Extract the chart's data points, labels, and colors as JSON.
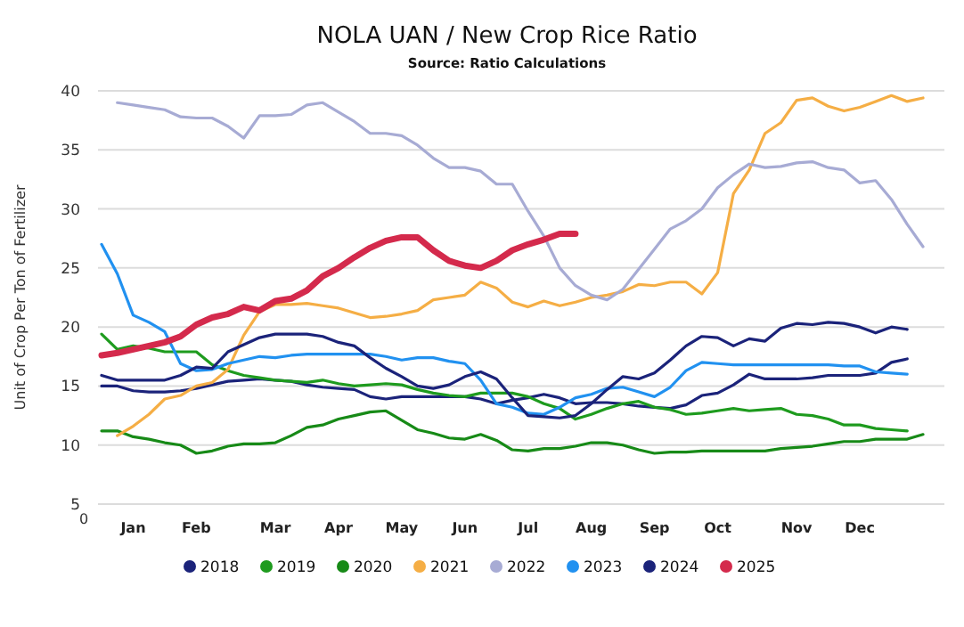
{
  "chart_data": {
    "type": "line",
    "title": "NOLA UAN / New Crop Rice Ratio",
    "subtitle": "Source: Ratio Calculations",
    "ylabel": "Unit of Crop Per Ton of Fertilizer",
    "categories": [
      null,
      null,
      "Jan",
      null,
      null,
      null,
      "Feb",
      null,
      null,
      null,
      null,
      "Mar",
      null,
      null,
      null,
      "Apr",
      null,
      null,
      null,
      "May",
      null,
      null,
      null,
      "Jun",
      null,
      null,
      null,
      "Jul",
      null,
      null,
      null,
      "Aug",
      null,
      null,
      null,
      "Sep",
      null,
      null,
      null,
      "Oct",
      null,
      null,
      null,
      null,
      "Nov",
      null,
      null,
      null,
      "Dec",
      null,
      null,
      null,
      null
    ],
    "ylim": [
      5,
      40
    ],
    "yticks": [
      5,
      10,
      15,
      20,
      25,
      30,
      35,
      40
    ],
    "grid": "y",
    "legend": "bottom",
    "marker": "none",
    "annotations": [
      "0"
    ],
    "series": [
      {
        "name": "2018",
        "color": "#1b237a",
        "values": [
          15,
          15,
          14.6,
          14.5,
          14.5,
          14.6,
          14.8,
          15.1,
          15.4,
          15.5,
          15.6,
          15.5,
          15.4,
          15.1,
          14.9,
          14.8,
          14.7,
          14.1,
          13.9,
          14.1,
          14.1,
          14.1,
          14.1,
          14.1,
          13.9,
          13.5,
          13.8,
          14.0,
          14.3,
          14.0,
          13.5,
          13.6,
          13.6,
          13.5,
          13.3,
          13.2,
          13.1,
          13.4,
          14.2,
          14.4,
          15.1,
          16.0,
          15.6,
          15.6,
          15.6,
          15.7,
          15.9,
          15.9,
          15.9,
          16.1,
          17.0,
          17.3,
          null
        ]
      },
      {
        "name": "2019",
        "color": "#1e9b1e",
        "values": [
          19.4,
          18.1,
          18.4,
          18.2,
          17.9,
          17.9,
          17.9,
          16.8,
          16.3,
          15.9,
          15.7,
          15.5,
          15.4,
          15.3,
          15.5,
          15.2,
          15.0,
          15.1,
          15.2,
          15.1,
          14.7,
          14.4,
          14.2,
          14.1,
          14.4,
          14.4,
          14.4,
          14.1,
          13.5,
          13.1,
          12.2,
          12.6,
          13.1,
          13.5,
          13.7,
          13.2,
          13.0,
          12.6,
          12.7,
          12.9,
          13.1,
          12.9,
          13.0,
          13.1,
          12.6,
          12.5,
          12.2,
          11.7,
          11.7,
          11.4,
          11.3,
          11.2,
          null
        ]
      },
      {
        "name": "2020",
        "color": "#178a17",
        "values": [
          11.2,
          11.2,
          10.7,
          10.5,
          10.2,
          10.0,
          9.3,
          9.5,
          9.9,
          10.1,
          10.1,
          10.2,
          10.8,
          11.5,
          11.7,
          12.2,
          12.5,
          12.8,
          12.9,
          12.1,
          11.3,
          11.0,
          10.6,
          10.5,
          10.9,
          10.4,
          9.6,
          9.5,
          9.7,
          9.7,
          9.9,
          10.2,
          10.2,
          10.0,
          9.6,
          9.3,
          9.4,
          9.4,
          9.5,
          9.5,
          9.5,
          9.5,
          9.5,
          9.7,
          9.8,
          9.9,
          10.1,
          10.3,
          10.3,
          10.5,
          10.5,
          10.5,
          10.9
        ]
      },
      {
        "name": "2021",
        "color": "#f5ae45",
        "values": [
          null,
          10.8,
          11.6,
          12.6,
          13.9,
          14.2,
          15.0,
          15.3,
          16.4,
          19.3,
          21.3,
          21.9,
          21.9,
          22.0,
          21.8,
          21.6,
          21.2,
          20.8,
          20.9,
          21.1,
          21.4,
          22.3,
          22.5,
          22.7,
          23.8,
          23.3,
          22.1,
          21.7,
          22.2,
          21.8,
          22.1,
          22.5,
          22.7,
          23.0,
          23.6,
          23.5,
          23.8,
          23.8,
          22.8,
          24.6,
          31.3,
          33.3,
          36.4,
          37.3,
          39.2,
          39.4,
          38.7,
          38.3,
          38.6,
          39.1,
          39.6,
          39.1,
          39.4
        ]
      },
      {
        "name": "2022",
        "color": "#a7abd4",
        "values": [
          null,
          39.0,
          38.8,
          38.6,
          38.4,
          37.8,
          37.7,
          37.7,
          37.0,
          36.0,
          37.9,
          37.9,
          38.0,
          38.8,
          39.0,
          38.2,
          37.4,
          36.4,
          36.4,
          36.2,
          35.4,
          34.3,
          33.5,
          33.5,
          33.2,
          32.1,
          32.1,
          29.8,
          27.7,
          25.0,
          23.5,
          22.7,
          22.3,
          23.2,
          24.9,
          26.6,
          28.3,
          29.0,
          30.0,
          31.8,
          32.9,
          33.8,
          33.5,
          33.6,
          33.9,
          34.0,
          33.5,
          33.3,
          32.2,
          32.4,
          30.8,
          28.7,
          26.8
        ]
      },
      {
        "name": "2023",
        "color": "#2191f0",
        "values": [
          27,
          24.5,
          21.0,
          20.4,
          19.6,
          16.9,
          16.3,
          16.4,
          16.9,
          17.2,
          17.5,
          17.4,
          17.6,
          17.7,
          17.7,
          17.7,
          17.7,
          17.7,
          17.5,
          17.2,
          17.4,
          17.4,
          17.1,
          16.9,
          15.5,
          13.5,
          13.2,
          12.7,
          12.6,
          13.2,
          14.0,
          14.3,
          14.8,
          14.9,
          14.5,
          14.1,
          14.9,
          16.3,
          17.0,
          16.9,
          16.8,
          16.8,
          16.8,
          16.8,
          16.8,
          16.8,
          16.8,
          16.7,
          16.7,
          16.2,
          16.1,
          16.0,
          null
        ]
      },
      {
        "name": "2024",
        "color": "#1b237a",
        "values": [
          15.9,
          15.5,
          15.5,
          15.5,
          15.5,
          15.9,
          16.6,
          16.5,
          17.9,
          18.5,
          19.1,
          19.4,
          19.4,
          19.4,
          19.2,
          18.7,
          18.4,
          17.4,
          16.5,
          15.8,
          15.0,
          14.8,
          15.1,
          15.8,
          16.2,
          15.6,
          14.0,
          12.5,
          12.4,
          12.3,
          12.5,
          13.5,
          14.7,
          15.8,
          15.6,
          16.1,
          17.2,
          18.4,
          19.2,
          19.1,
          18.4,
          19.0,
          18.8,
          19.9,
          20.3,
          20.2,
          20.4,
          20.3,
          20.0,
          19.5,
          20,
          19.8,
          null
        ]
      },
      {
        "name": "2025",
        "color": "#d42a4c",
        "values": [
          17.6,
          17.8,
          18.1,
          18.4,
          18.7,
          19.2,
          20.2,
          20.8,
          21.1,
          21.7,
          21.4,
          22.2,
          22.4,
          23.1,
          24.3,
          25.0,
          25.9,
          26.7,
          27.3,
          27.6,
          27.6,
          26.5,
          25.6,
          25.2,
          25.0,
          25.6,
          26.5,
          27.0,
          27.4,
          27.9,
          27.9,
          null,
          null,
          null,
          null,
          null,
          null,
          null,
          null,
          null,
          null,
          null,
          null,
          null,
          null,
          null,
          null,
          null,
          null,
          null,
          null,
          null,
          null
        ]
      }
    ]
  }
}
